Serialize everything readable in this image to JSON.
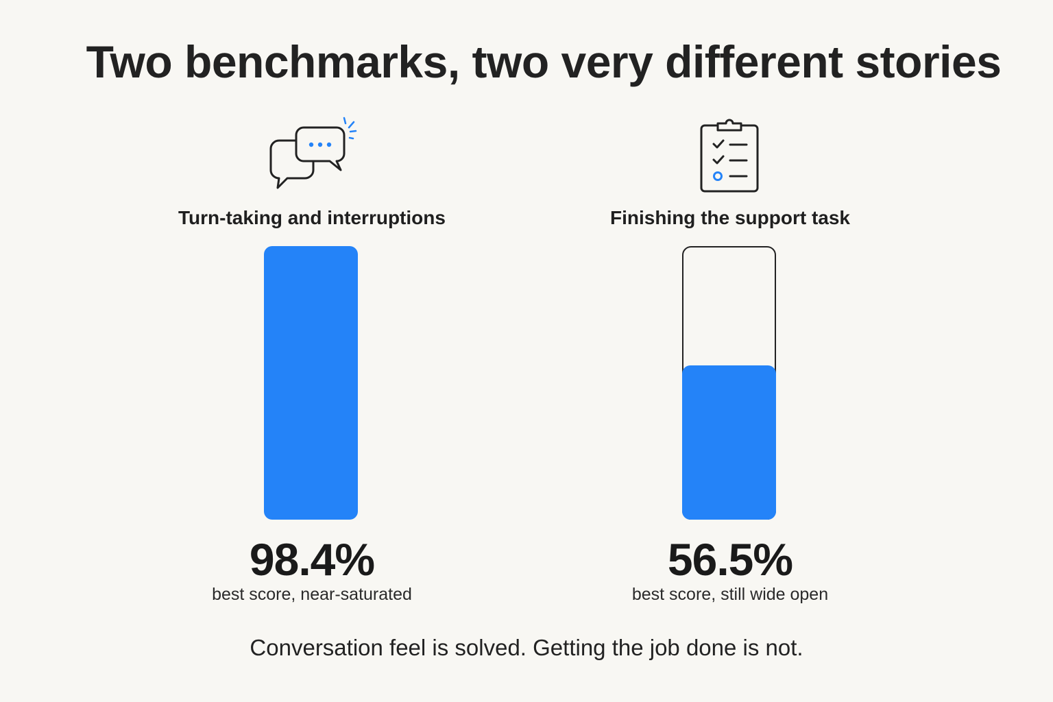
{
  "title": "Two benchmarks, two very different stories",
  "footer": "Conversation feel is solved. Getting the job done is not.",
  "colors": {
    "accent": "#2483f8",
    "outline": "#222222",
    "background": "#f8f7f3"
  },
  "chart_data": {
    "type": "bar",
    "title": "Two benchmarks, two very different stories",
    "categories": [
      "Turn-taking and interruptions",
      "Finishing the support task"
    ],
    "values": [
      98.4,
      56.5
    ],
    "value_labels": [
      "98.4%",
      "56.5%"
    ],
    "captions": [
      "best score, near-saturated",
      "best score, still wide open"
    ],
    "icons": [
      "chat-bubbles-icon",
      "clipboard-checklist-icon"
    ],
    "ylim": [
      0,
      100
    ],
    "grid": false,
    "xlabel": "",
    "ylabel": ""
  }
}
